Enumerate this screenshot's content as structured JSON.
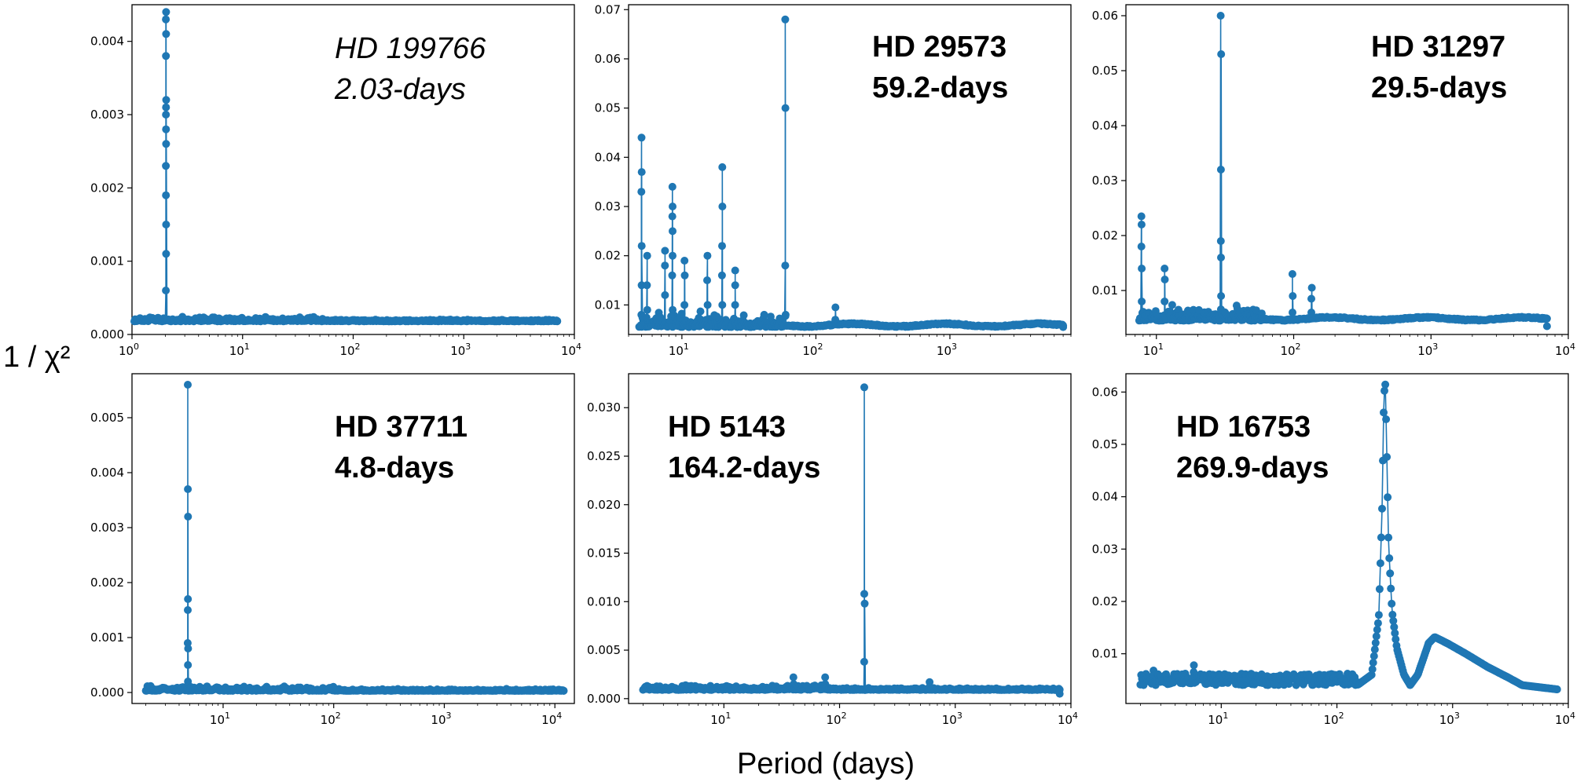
{
  "figure": {
    "ylabel": "1 / χ²",
    "xlabel": "Period (days)",
    "series_color": "#1f77b4"
  },
  "chart_data": [
    {
      "type": "scatter",
      "title": [
        "HD 199766",
        "2.03-days"
      ],
      "title_style": "italic",
      "xscale": "log",
      "xlim": [
        1,
        10000
      ],
      "ylim": [
        0,
        0.0045
      ],
      "yticks": [
        0.0,
        0.001,
        0.002,
        0.003,
        0.004
      ],
      "ytick_labels": [
        "0.000",
        "0.001",
        "0.002",
        "0.003",
        "0.004"
      ],
      "xtick_exponents": [
        0,
        1,
        2,
        3,
        4
      ],
      "base_y": 0.00018,
      "decay": [],
      "x_max": 7000,
      "end_y": 0.00018,
      "spikes": [
        {
          "x": 2.03,
          "ys": [
            0.0002,
            0.0006,
            0.0011,
            0.0015,
            0.0019,
            0.0023,
            0.0026,
            0.0028,
            0.003,
            0.0031,
            0.0032,
            0.0038,
            0.0041,
            0.0043,
            0.0044
          ]
        }
      ]
    },
    {
      "type": "scatter",
      "title": [
        "HD 29573",
        "59.2-days"
      ],
      "title_style": "bold",
      "xscale": "log",
      "xlim": [
        4,
        8000
      ],
      "ylim": [
        0.004,
        0.071
      ],
      "yticks": [
        0.01,
        0.02,
        0.03,
        0.04,
        0.05,
        0.06,
        0.07
      ],
      "ytick_labels": [
        "0.01",
        "0.02",
        "0.03",
        "0.04",
        "0.05",
        "0.06",
        "0.07"
      ],
      "xtick_exponents": [
        1,
        2,
        3
      ],
      "base_y": 0.0055,
      "decay": [],
      "x_max": 7000,
      "end_y": 0.0055,
      "spikes": [
        {
          "x": 5.0,
          "ys": [
            0.008,
            0.014,
            0.022,
            0.033,
            0.037,
            0.044
          ]
        },
        {
          "x": 5.5,
          "ys": [
            0.009,
            0.014,
            0.02
          ]
        },
        {
          "x": 8.5,
          "ys": [
            0.009,
            0.016,
            0.02,
            0.025,
            0.028,
            0.03,
            0.034
          ]
        },
        {
          "x": 7.5,
          "ys": [
            0.012,
            0.018,
            0.021
          ]
        },
        {
          "x": 10.5,
          "ys": [
            0.01,
            0.016,
            0.019
          ]
        },
        {
          "x": 15.5,
          "ys": [
            0.01,
            0.015,
            0.02
          ]
        },
        {
          "x": 20.0,
          "ys": [
            0.01,
            0.016,
            0.022,
            0.03,
            0.038
          ]
        },
        {
          "x": 25.0,
          "ys": [
            0.01,
            0.014,
            0.017
          ]
        },
        {
          "x": 59.2,
          "ys": [
            0.008,
            0.018,
            0.05,
            0.068
          ]
        },
        {
          "x": 140,
          "ys": [
            0.007,
            0.0095
          ]
        }
      ]
    },
    {
      "type": "scatter",
      "title": [
        "HD 31297",
        "29.5-days"
      ],
      "title_style": "bold",
      "xscale": "log",
      "xlim": [
        6,
        10000
      ],
      "ylim": [
        0.002,
        0.062
      ],
      "yticks": [
        0.01,
        0.02,
        0.03,
        0.04,
        0.05,
        0.06
      ],
      "ytick_labels": [
        "0.01",
        "0.02",
        "0.03",
        "0.04",
        "0.05",
        "0.06"
      ],
      "xtick_exponents": [
        1,
        2,
        3,
        4
      ],
      "base_y": 0.0045,
      "decay": [],
      "x_max": 7000,
      "end_y": 0.0035,
      "spikes": [
        {
          "x": 7.8,
          "ys": [
            0.008,
            0.014,
            0.018,
            0.022,
            0.0235
          ]
        },
        {
          "x": 11.5,
          "ys": [
            0.008,
            0.012,
            0.014
          ]
        },
        {
          "x": 29.5,
          "ys": [
            0.009,
            0.016,
            0.019,
            0.032,
            0.053,
            0.06
          ]
        },
        {
          "x": 98,
          "ys": [
            0.006,
            0.009,
            0.013
          ]
        },
        {
          "x": 135,
          "ys": [
            0.006,
            0.0085,
            0.0105
          ]
        }
      ]
    },
    {
      "type": "scatter",
      "title": [
        "HD 37711",
        "4.8-days"
      ],
      "title_style": "bold",
      "xscale": "log",
      "xlim": [
        1.5,
        15000
      ],
      "ylim": [
        -0.0002,
        0.0058
      ],
      "yticks": [
        0.0,
        0.001,
        0.002,
        0.003,
        0.004,
        0.005
      ],
      "ytick_labels": [
        "0.000",
        "0.001",
        "0.002",
        "0.003",
        "0.004",
        "0.005"
      ],
      "xtick_exponents": [
        1,
        2,
        3,
        4
      ],
      "base_y": 3e-05,
      "decay": [],
      "x_max": 12000,
      "end_y": 3e-05,
      "spikes": [
        {
          "x": 4.8,
          "ys": [
            0.0002,
            0.0005,
            0.0008,
            0.0009,
            0.0015,
            0.0017,
            0.0032,
            0.0037,
            0.0056
          ]
        }
      ]
    },
    {
      "type": "scatter",
      "title": [
        "HD 5143",
        "164.2-days"
      ],
      "title_style": "bold",
      "xscale": "log",
      "xlim": [
        1.5,
        10000
      ],
      "ylim": [
        -0.0005,
        0.0335
      ],
      "yticks": [
        0.0,
        0.005,
        0.01,
        0.015,
        0.02,
        0.025,
        0.03
      ],
      "ytick_labels": [
        "0.000",
        "0.005",
        "0.010",
        "0.015",
        "0.020",
        "0.025",
        "0.030"
      ],
      "xtick_exponents": [
        1,
        2,
        3,
        4
      ],
      "base_y": 0.0009,
      "decay": [],
      "x_max": 8000,
      "end_y": 0.0005,
      "spikes": [
        {
          "x": 40,
          "ys": [
            0.0015,
            0.0022
          ]
        },
        {
          "x": 75,
          "ys": [
            0.0015,
            0.0022
          ]
        },
        {
          "x": 164.2,
          "ys": [
            0.0038,
            0.0098,
            0.0108,
            0.0321
          ]
        },
        {
          "x": 600,
          "ys": [
            0.0012,
            0.0017
          ]
        }
      ]
    },
    {
      "type": "scatter",
      "title": [
        "HD 16753",
        "269.9-days"
      ],
      "title_style": "bold",
      "xscale": "log",
      "xlim": [
        1.5,
        10000
      ],
      "ylim": [
        0.0005,
        0.0635
      ],
      "yticks": [
        0.01,
        0.02,
        0.03,
        0.04,
        0.05,
        0.06
      ],
      "ytick_labels": [
        "0.01",
        "0.02",
        "0.03",
        "0.04",
        "0.05",
        "0.06"
      ],
      "xtick_exponents": [
        1,
        2,
        3,
        4
      ],
      "base_y": 0.004,
      "decay": [
        [
          2,
          0.004
        ],
        [
          150,
          0.004
        ],
        [
          200,
          0.006
        ],
        [
          230,
          0.017
        ],
        [
          245,
          0.0365
        ],
        [
          255,
          0.0595
        ],
        [
          262,
          0.0615
        ],
        [
          270,
          0.048
        ],
        [
          280,
          0.0305
        ],
        [
          300,
          0.018
        ],
        [
          330,
          0.011
        ],
        [
          380,
          0.006
        ],
        [
          430,
          0.004
        ],
        [
          500,
          0.006
        ],
        [
          620,
          0.012
        ],
        [
          700,
          0.0132
        ],
        [
          900,
          0.012
        ],
        [
          1300,
          0.01
        ],
        [
          2000,
          0.0075
        ],
        [
          3000,
          0.0055
        ],
        [
          4000,
          0.004
        ],
        [
          8000,
          0.0032
        ]
      ],
      "x_max": 8000,
      "end_y": 0.0032,
      "spikes": [
        {
          "x": 5.8,
          "ys": [
            0.0065,
            0.0078
          ]
        },
        {
          "x": 2.6,
          "ys": [
            0.006,
            0.0068
          ]
        }
      ]
    }
  ]
}
